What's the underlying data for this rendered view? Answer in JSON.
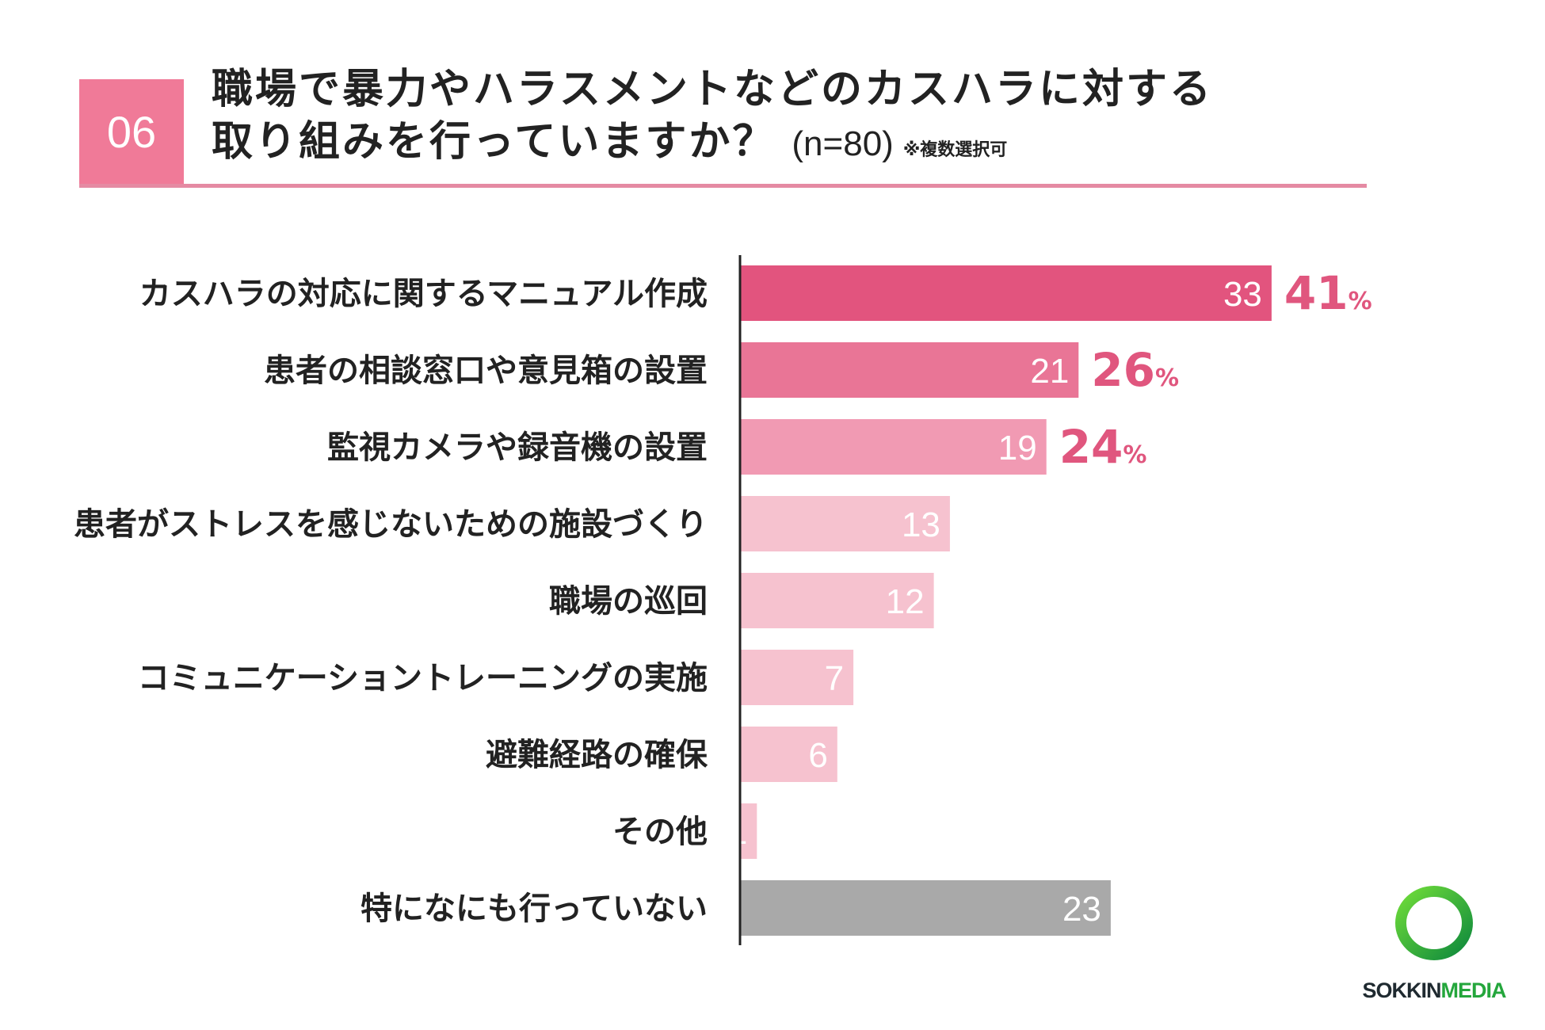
{
  "question": {
    "number": "06",
    "line1": "職場で暴力やハラスメントなどのカスハラに対する",
    "line2": "取り組みを行っていますか？",
    "sample": "(n=80)",
    "note": "※複数選択可",
    "accent_color": "#f07a98"
  },
  "chart_data": {
    "type": "bar",
    "orientation": "horizontal",
    "title": "職場で暴力やハラスメントなどのカスハラに対する取り組みを行っていますか？",
    "n": 80,
    "categories": [
      "カスハラの対応に関するマニュアル作成",
      "患者の相談窓口や意見箱の設置",
      "監視カメラや録音機の設置",
      "患者がストレスを感じないための施設づくり",
      "職場の巡回",
      "コミュニケーショントレーニングの実施",
      "避難経路の確保",
      "その他",
      "特になにも行っていない"
    ],
    "values": [
      33,
      21,
      19,
      13,
      12,
      7,
      6,
      1,
      23
    ],
    "percent_labels": [
      {
        "index": 0,
        "value": "41",
        "unit": "%"
      },
      {
        "index": 1,
        "value": "26",
        "unit": "%"
      },
      {
        "index": 2,
        "value": "24",
        "unit": "%"
      }
    ],
    "colors": [
      "#e2547e",
      "#e97596",
      "#f19ab3",
      "#f6c2cf",
      "#f6c2cf",
      "#f6c2cf",
      "#f6c2cf",
      "#f6c2cf",
      "#a9a9a9"
    ],
    "xlim": [
      0,
      38
    ]
  },
  "logo": {
    "part1": "SOKKIN",
    "part2": "MEDIA"
  }
}
